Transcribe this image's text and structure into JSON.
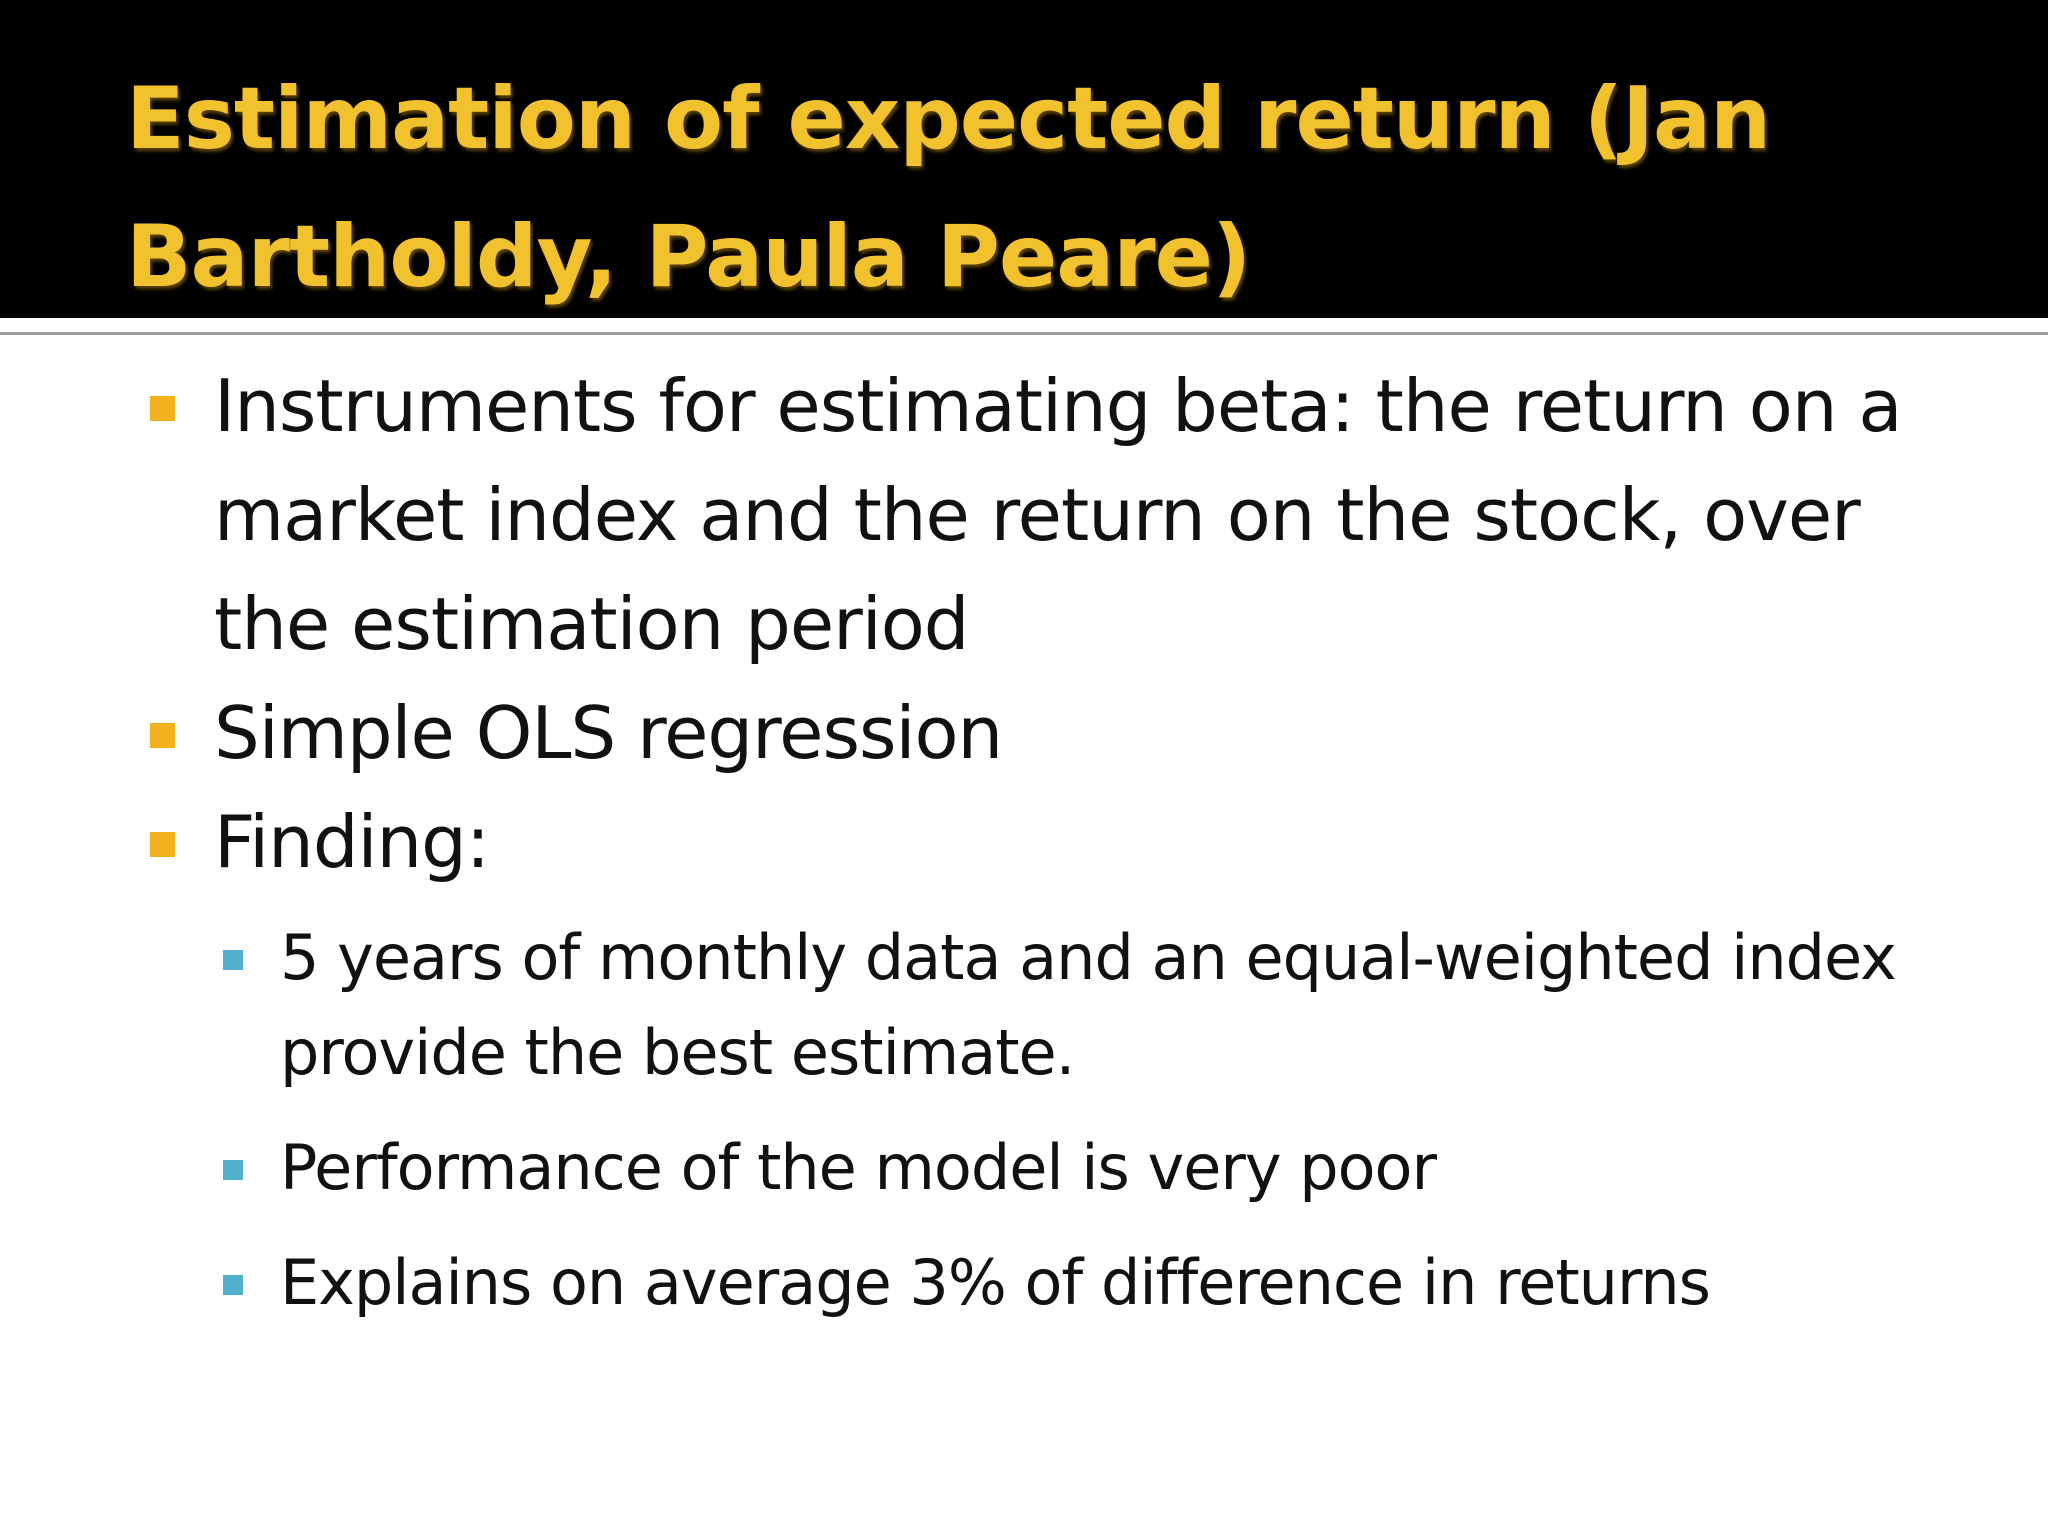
{
  "slide": {
    "title": "Estimation of expected return (Jan Bartholdy, Paula Peare)",
    "bullets": [
      "Instruments for estimating beta: the return on a market index and the return on the stock, over the estimation period",
      "Simple OLS regression",
      "Finding:"
    ],
    "sub_bullets": [
      "5 years of monthly data and an equal-weighted index provide the best estimate.",
      "Performance of the model is very poor",
      "Explains on average 3% of difference in returns"
    ]
  },
  "colors": {
    "title_background": "#000000",
    "title_text": "#f2c12e",
    "bullet_marker": "#f2b01e",
    "sub_bullet_marker": "#4fb1ce",
    "body_text": "#111111"
  }
}
